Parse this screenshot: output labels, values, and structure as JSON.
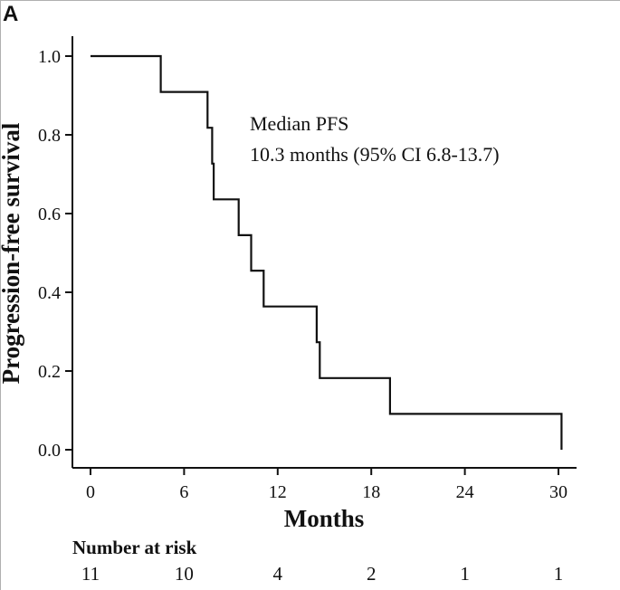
{
  "panel_label": "A",
  "colors": {
    "line": "#111111",
    "background": "#ffffff"
  },
  "chart_data": {
    "type": "line",
    "subtype": "kaplan-meier step",
    "title": "",
    "xlabel": "Months",
    "ylabel": "Progression-free survival",
    "xlim": [
      0,
      30.5
    ],
    "ylim": [
      0,
      1.0
    ],
    "x_ticks": [
      0,
      6,
      12,
      18,
      24,
      30
    ],
    "x_tick_labels": [
      "0",
      "6",
      "12",
      "18",
      "24",
      "30"
    ],
    "y_ticks": [
      0,
      0.2,
      0.4,
      0.6,
      0.8,
      1.0
    ],
    "y_tick_labels": [
      "0.0",
      "0.2",
      "0.4",
      "0.6",
      "0.8",
      "1.0"
    ],
    "grid": false,
    "series": [
      {
        "points": [
          [
            0,
            1.0
          ],
          [
            4.5,
            1.0
          ],
          [
            4.5,
            0.909
          ],
          [
            7.5,
            0.909
          ],
          [
            7.5,
            0.818
          ],
          [
            7.8,
            0.818
          ],
          [
            7.8,
            0.727
          ],
          [
            7.9,
            0.727
          ],
          [
            7.9,
            0.636
          ],
          [
            9.5,
            0.636
          ],
          [
            9.5,
            0.545
          ],
          [
            10.3,
            0.545
          ],
          [
            10.3,
            0.455
          ],
          [
            11.1,
            0.455
          ],
          [
            11.1,
            0.364
          ],
          [
            14.5,
            0.364
          ],
          [
            14.5,
            0.273
          ],
          [
            14.7,
            0.273
          ],
          [
            14.7,
            0.182
          ],
          [
            19.2,
            0.182
          ],
          [
            19.2,
            0.091
          ],
          [
            30.2,
            0.091
          ],
          [
            30.2,
            0.0
          ]
        ]
      }
    ],
    "annotations": [
      "Median PFS",
      "10.3 months (95% CI 6.8-13.7)"
    ],
    "risk_table": {
      "title": "Number at risk",
      "times": [
        0,
        6,
        12,
        18,
        24,
        30
      ],
      "values": [
        "11",
        "10",
        "4",
        "2",
        "1",
        "1"
      ]
    }
  }
}
